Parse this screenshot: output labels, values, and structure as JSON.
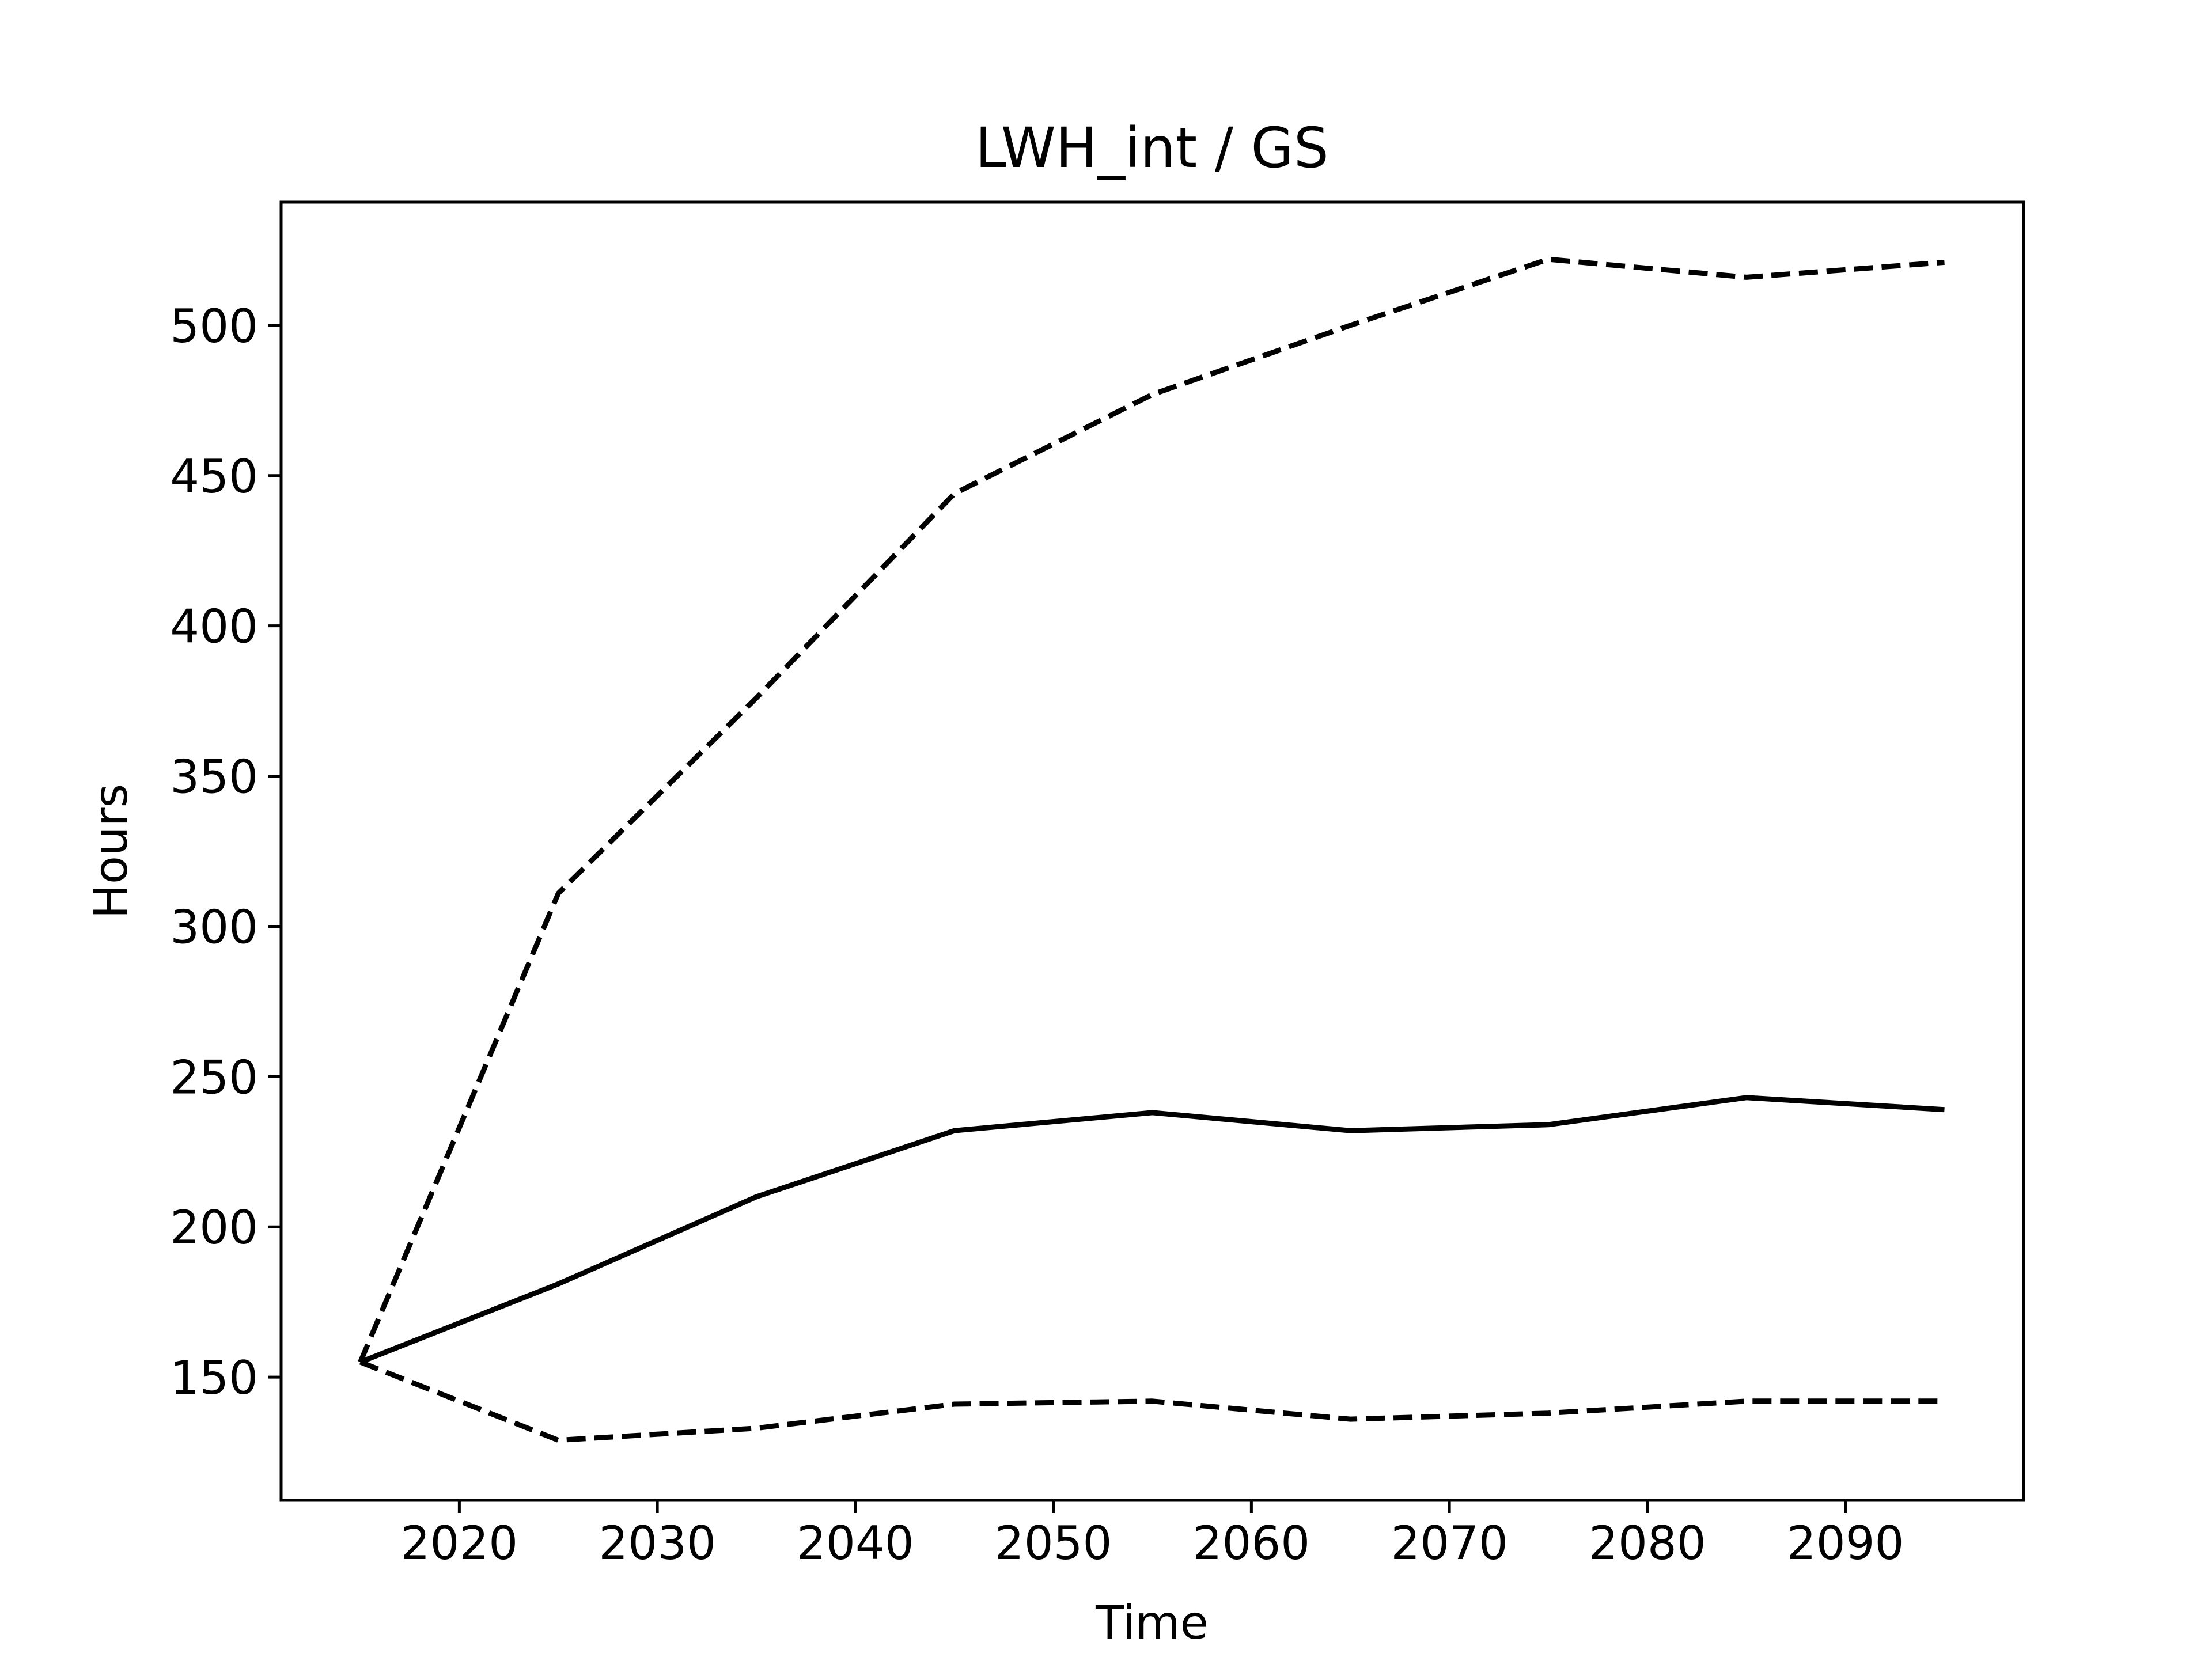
{
  "chart_data": {
    "type": "line",
    "title": "LWH_int / GS",
    "xlabel": "Time",
    "ylabel": "Hours",
    "xlim": [
      2011,
      2099
    ],
    "ylim": [
      109,
      541
    ],
    "xticks": [
      2020,
      2030,
      2040,
      2050,
      2060,
      2070,
      2080,
      2090
    ],
    "yticks": [
      150,
      200,
      250,
      300,
      350,
      400,
      450,
      500
    ],
    "grid": false,
    "x": [
      2015,
      2025,
      2035,
      2045,
      2055,
      2065,
      2075,
      2085,
      2095
    ],
    "series": [
      {
        "style": "solid",
        "color": "#000000",
        "values": [
          155,
          181,
          210,
          232,
          238,
          232,
          234,
          243,
          239
        ]
      },
      {
        "style": "dashed",
        "color": "#000000",
        "values": [
          155,
          311,
          376,
          444,
          477,
          500,
          522,
          516,
          521
        ]
      },
      {
        "style": "dashed",
        "color": "#000000",
        "values": [
          155,
          129,
          133,
          141,
          142,
          136,
          138,
          142,
          142
        ]
      }
    ]
  }
}
